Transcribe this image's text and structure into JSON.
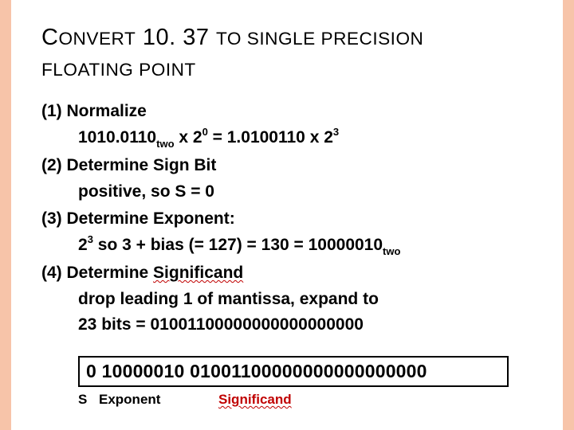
{
  "colors": {
    "stripe": "#f7c4a9",
    "text": "#000000",
    "wavy_underline": "#c00000",
    "significand_color": "#c00000",
    "background": "#ffffff"
  },
  "typography": {
    "title_fontsize": 29,
    "body_fontsize": 21,
    "bitbox_fontsize": 23,
    "label_fontsize": 17,
    "body_weight": "bold"
  },
  "title": {
    "line1_a": "C",
    "line1_b": "ONVERT",
    "line1_num": " 10. 37 ",
    "line1_c": "TO SINGLE PRECISION",
    "line2": "FLOATING POINT"
  },
  "steps": [
    {
      "head": "(1) Normalize",
      "body_parts": {
        "a": "1010.0110",
        "sub1": "two",
        "b": " x 2",
        "sup1": "0",
        "c": " = 1.0100110 x 2",
        "sup2": "3"
      }
    },
    {
      "head": "(2) Determine Sign Bit",
      "body_plain": "positive, so S = 0"
    },
    {
      "head": "(3) Determine Exponent:",
      "body_parts": {
        "a": "2",
        "sup1": "3",
        "b": " so 3 + bias (= 127) = 130 = 10000010",
        "sub1": "two"
      }
    },
    {
      "head_prefix": "(4) Determine ",
      "head_wavy": "Significand",
      "body_plain": "drop leading 1 of mantissa, expand to",
      "body_plain2": "23 bits = 01001100000000000000000"
    }
  ],
  "bitbox": {
    "sign": "0",
    "exponent": "10000010",
    "significand": "01001100000000000000000"
  },
  "labels": {
    "s": "S",
    "exp": "Exponent",
    "sig": "Significand"
  }
}
